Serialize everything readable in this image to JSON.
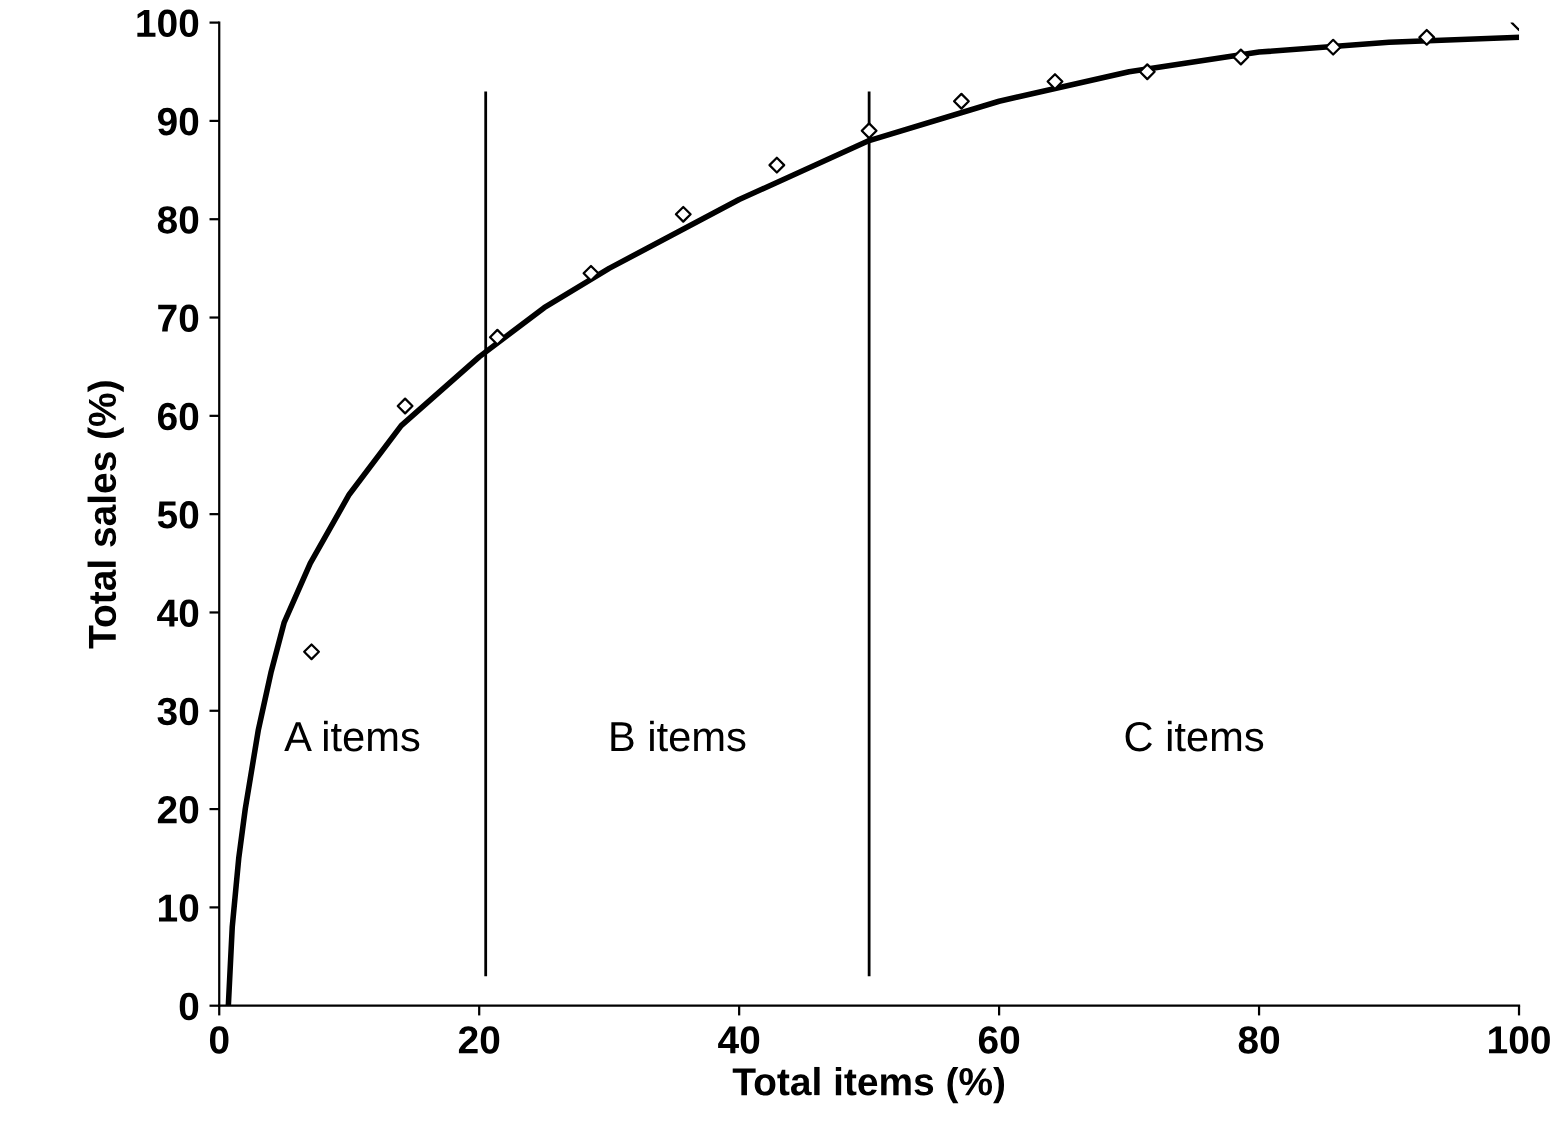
{
  "chart_data": {
    "type": "scatter",
    "xlabel": "Total items (%)",
    "ylabel": "Total sales (%)",
    "xlim": [
      0,
      100
    ],
    "ylim": [
      0,
      100
    ],
    "xticks": [
      0,
      20,
      40,
      60,
      80,
      100
    ],
    "yticks": [
      0,
      10,
      20,
      30,
      40,
      50,
      60,
      70,
      80,
      90,
      100
    ],
    "grid": false,
    "legend": false,
    "marker": "diamond",
    "series": [
      {
        "color": "#000000",
        "x": [
          7.1,
          14.3,
          21.4,
          28.6,
          35.7,
          42.9,
          50,
          57.1,
          64.3,
          71.4,
          78.6,
          85.7,
          92.9,
          100
        ],
        "values": [
          36,
          61,
          68,
          74.5,
          80.5,
          85.5,
          89,
          92,
          94,
          95,
          96.5,
          97.5,
          98.5,
          100
        ]
      },
      {
        "type": "line",
        "color": "#000000",
        "marker": "none",
        "line_style": "solid",
        "x": [
          0.7,
          1,
          1.5,
          2,
          3,
          4,
          5,
          7,
          10,
          14,
          20,
          25,
          30,
          40,
          50,
          60,
          70,
          80,
          90,
          100
        ],
        "values": [
          0,
          8,
          15,
          20,
          28,
          34,
          39,
          45,
          52,
          59,
          66,
          71,
          75,
          82,
          88,
          92,
          95,
          97,
          98,
          98.5
        ]
      }
    ],
    "ref_lines": [
      {
        "axis": "x",
        "value": 20.5,
        "color": "#000000"
      },
      {
        "axis": "x",
        "value": 50,
        "color": "#000000"
      }
    ],
    "annotations": [
      "A items",
      "B items",
      "C items"
    ]
  }
}
